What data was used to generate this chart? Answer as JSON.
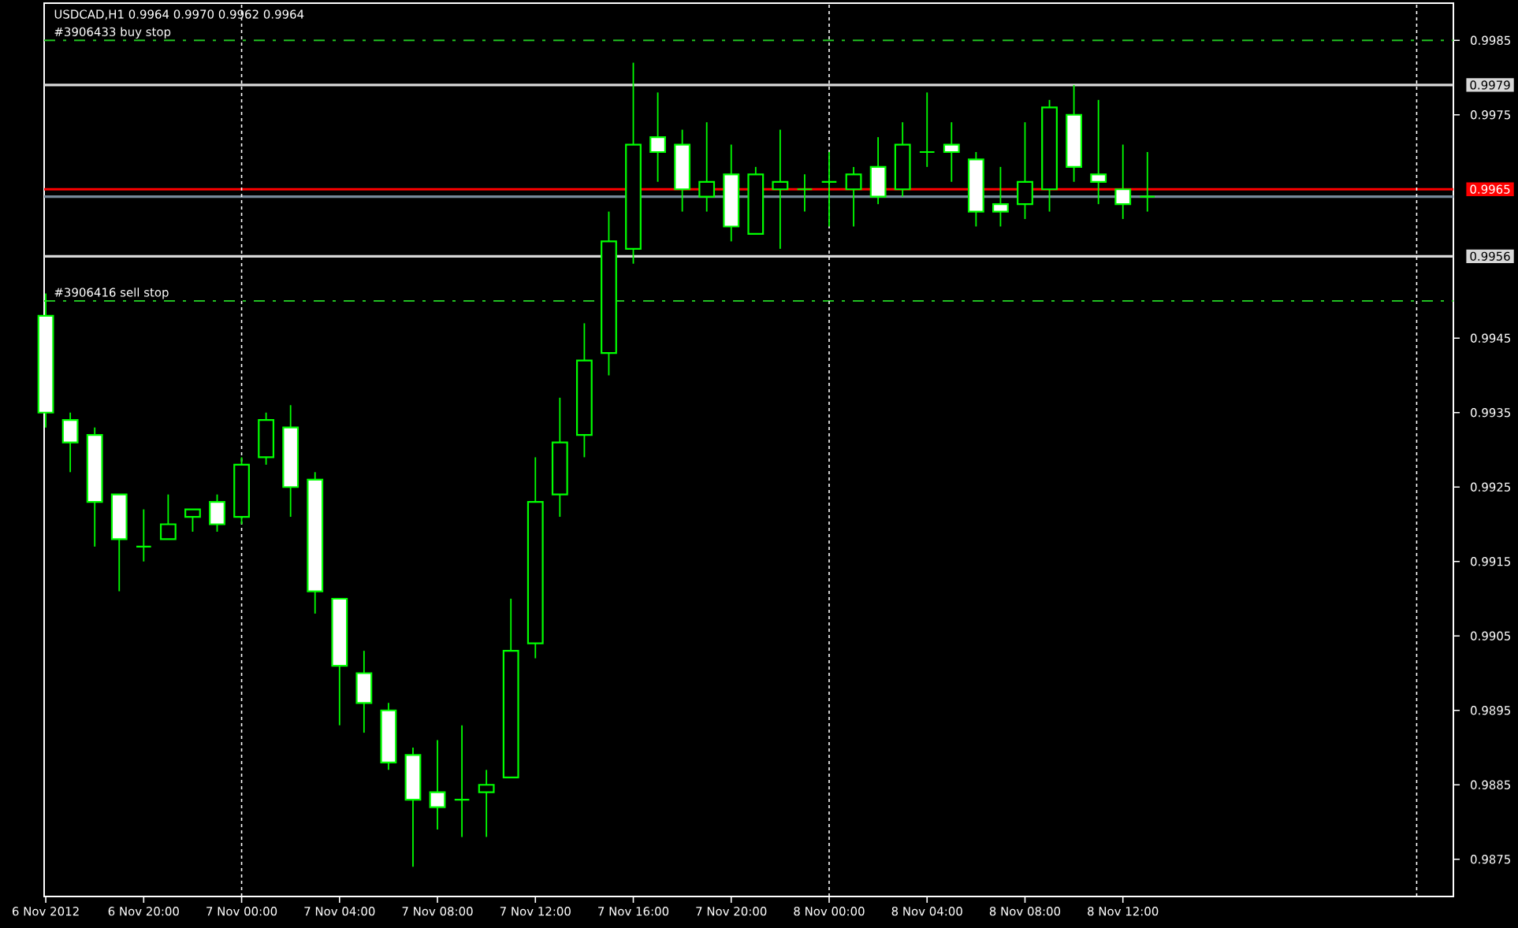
{
  "chart_data": {
    "type": "candlestick",
    "title": "USDCAD,H1  0.9964 0.9970 0.9962 0.9964",
    "color": "#00ff00",
    "x": [
      "2012-11-06T16:00",
      "2012-11-06T17:00",
      "2012-11-06T18:00",
      "2012-11-06T19:00",
      "2012-11-06T20:00",
      "2012-11-06T21:00",
      "2012-11-06T22:00",
      "2012-11-06T23:00",
      "2012-11-07T00:00",
      "2012-11-07T01:00",
      "2012-11-07T02:00",
      "2012-11-07T03:00",
      "2012-11-07T04:00",
      "2012-11-07T05:00",
      "2012-11-07T06:00",
      "2012-11-07T07:00",
      "2012-11-07T08:00",
      "2012-11-07T09:00",
      "2012-11-07T10:00",
      "2012-11-07T11:00",
      "2012-11-07T12:00",
      "2012-11-07T13:00",
      "2012-11-07T14:00",
      "2012-11-07T15:00",
      "2012-11-07T16:00",
      "2012-11-07T17:00",
      "2012-11-07T18:00",
      "2012-11-07T19:00",
      "2012-11-07T20:00",
      "2012-11-07T21:00",
      "2012-11-07T22:00",
      "2012-11-07T23:00",
      "2012-11-08T00:00",
      "2012-11-08T01:00",
      "2012-11-08T02:00",
      "2012-11-08T03:00",
      "2012-11-08T04:00",
      "2012-11-08T05:00",
      "2012-11-08T06:00",
      "2012-11-08T07:00",
      "2012-11-08T08:00",
      "2012-11-08T09:00",
      "2012-11-08T10:00",
      "2012-11-08T11:00",
      "2012-11-08T12:00",
      "2012-11-08T13:00"
    ],
    "ohlc": [
      [
        0.9948,
        0.9951,
        0.9933,
        0.9935
      ],
      [
        0.9934,
        0.9935,
        0.9927,
        0.9931
      ],
      [
        0.9932,
        0.9933,
        0.9917,
        0.9923
      ],
      [
        0.9924,
        0.9924,
        0.9911,
        0.9918
      ],
      [
        0.9917,
        0.9922,
        0.9915,
        0.9917
      ],
      [
        0.9918,
        0.9924,
        0.9918,
        0.992
      ],
      [
        0.9921,
        0.9922,
        0.9919,
        0.9922
      ],
      [
        0.9923,
        0.9924,
        0.9919,
        0.992
      ],
      [
        0.9921,
        0.9929,
        0.992,
        0.9928
      ],
      [
        0.9929,
        0.9935,
        0.9928,
        0.9934
      ],
      [
        0.9933,
        0.9936,
        0.9921,
        0.9925
      ],
      [
        0.9926,
        0.9927,
        0.9908,
        0.9911
      ],
      [
        0.991,
        0.991,
        0.9893,
        0.9901
      ],
      [
        0.99,
        0.9903,
        0.9892,
        0.9896
      ],
      [
        0.9895,
        0.9896,
        0.9887,
        0.9888
      ],
      [
        0.9889,
        0.989,
        0.9874,
        0.9883
      ],
      [
        0.9884,
        0.9891,
        0.9879,
        0.9882
      ],
      [
        0.9883,
        0.9893,
        0.9878,
        0.9883
      ],
      [
        0.9884,
        0.9887,
        0.9878,
        0.9885
      ],
      [
        0.9886,
        0.991,
        0.9886,
        0.9903
      ],
      [
        0.9904,
        0.9929,
        0.9902,
        0.9923
      ],
      [
        0.9924,
        0.9937,
        0.9921,
        0.9931
      ],
      [
        0.9932,
        0.9947,
        0.9929,
        0.9942
      ],
      [
        0.9943,
        0.9962,
        0.994,
        0.9958
      ],
      [
        0.9957,
        0.9982,
        0.9955,
        0.9971
      ],
      [
        0.9972,
        0.9978,
        0.9966,
        0.997
      ],
      [
        0.9971,
        0.9973,
        0.9962,
        0.9965
      ],
      [
        0.9964,
        0.9974,
        0.9962,
        0.9966
      ],
      [
        0.9967,
        0.9971,
        0.9958,
        0.996
      ],
      [
        0.9959,
        0.9968,
        0.9959,
        0.9967
      ],
      [
        0.9965,
        0.9973,
        0.9957,
        0.9966
      ],
      [
        0.9965,
        0.9967,
        0.9962,
        0.9965
      ],
      [
        0.9966,
        0.997,
        0.996,
        0.9966
      ],
      [
        0.9965,
        0.9968,
        0.996,
        0.9967
      ],
      [
        0.9968,
        0.9972,
        0.9963,
        0.9964
      ],
      [
        0.9965,
        0.9974,
        0.9964,
        0.9971
      ],
      [
        0.997,
        0.9978,
        0.9968,
        0.997
      ],
      [
        0.9971,
        0.9974,
        0.9966,
        0.997
      ],
      [
        0.9969,
        0.997,
        0.996,
        0.9962
      ],
      [
        0.9963,
        0.9968,
        0.996,
        0.9962
      ],
      [
        0.9963,
        0.9974,
        0.9961,
        0.9966
      ],
      [
        0.9965,
        0.9977,
        0.9962,
        0.9976
      ],
      [
        0.9975,
        0.9979,
        0.9966,
        0.9968
      ],
      [
        0.9967,
        0.9977,
        0.9963,
        0.9966
      ],
      [
        0.9965,
        0.9971,
        0.9961,
        0.9963
      ],
      [
        0.9964,
        0.997,
        0.9962,
        0.9964
      ]
    ],
    "xlim": [
      "2012-11-06T15:56",
      "2012-11-09T01:30"
    ],
    "ylim": [
      0.987,
      0.999
    ],
    "xticks": [
      {
        "value": "2012-11-06T16:00",
        "label": "6 Nov 2012"
      },
      {
        "value": "2012-11-06T20:00",
        "label": "6 Nov 20:00"
      },
      {
        "value": "2012-11-07T00:00",
        "label": "7 Nov 00:00"
      },
      {
        "value": "2012-11-07T04:00",
        "label": "7 Nov 04:00"
      },
      {
        "value": "2012-11-07T08:00",
        "label": "7 Nov 08:00"
      },
      {
        "value": "2012-11-07T12:00",
        "label": "7 Nov 12:00"
      },
      {
        "value": "2012-11-07T16:00",
        "label": "7 Nov 16:00"
      },
      {
        "value": "2012-11-07T20:00",
        "label": "7 Nov 20:00"
      },
      {
        "value": "2012-11-08T00:00",
        "label": "8 Nov 00:00"
      },
      {
        "value": "2012-11-08T04:00",
        "label": "8 Nov 04:00"
      },
      {
        "value": "2012-11-08T08:00",
        "label": "8 Nov 08:00"
      },
      {
        "value": "2012-11-08T12:00",
        "label": "8 Nov 12:00"
      }
    ],
    "yticks": [
      0.9875,
      0.9885,
      0.9895,
      0.9905,
      0.9915,
      0.9925,
      0.9935,
      0.9945,
      0.9975,
      0.9985
    ],
    "ref_lines": [
      {
        "axis": "y",
        "value": 0.9985,
        "label": "#3906433 buy stop",
        "color": "#22c022",
        "line_style": "dashed"
      },
      {
        "axis": "y",
        "value": 0.9979,
        "label": "0.9979",
        "color": "#d8d8d8",
        "line_style": "solid"
      },
      {
        "axis": "y",
        "value": 0.9965,
        "label": "0.9965",
        "color": "#ff0000",
        "line_style": "solid"
      },
      {
        "axis": "y",
        "value": 0.9964,
        "color": "#778899",
        "line_style": "solid"
      },
      {
        "axis": "y",
        "value": 0.9956,
        "label": "0.9956",
        "color": "#d8d8d8",
        "line_style": "solid"
      },
      {
        "axis": "y",
        "value": 0.995,
        "label": "#3906416 sell stop",
        "color": "#22c022",
        "line_style": "dashed"
      },
      {
        "axis": "x",
        "value": "2012-11-07T00:00",
        "color": "#ffffff",
        "line_style": "dotted"
      },
      {
        "axis": "x",
        "value": "2012-11-08T00:00",
        "color": "#ffffff",
        "line_style": "dotted"
      },
      {
        "axis": "x",
        "value": "2012-11-09T00:00",
        "color": "#ffffff",
        "line_style": "dotted"
      }
    ]
  }
}
